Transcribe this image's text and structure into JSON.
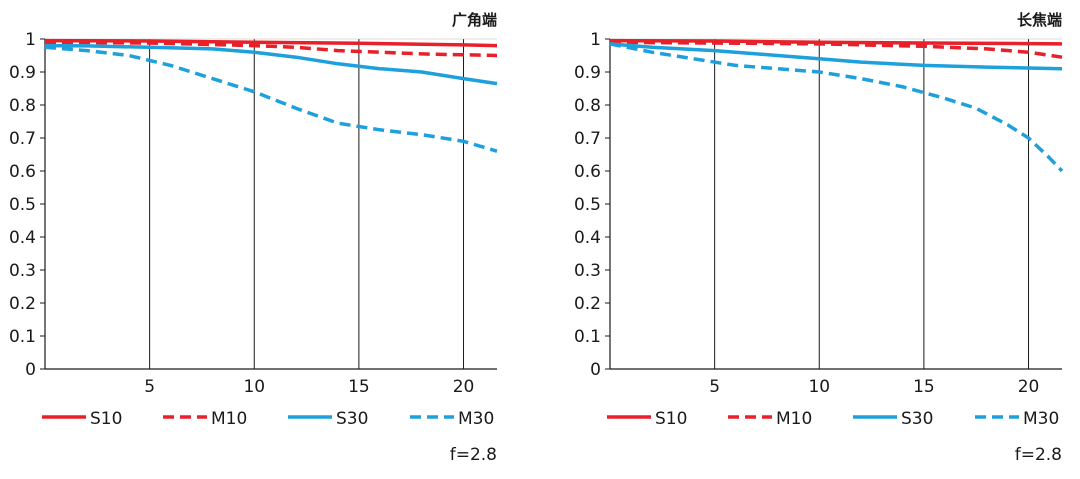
{
  "chart_data": [
    {
      "type": "line",
      "title": "广角端",
      "xlabel": "",
      "ylabel": "",
      "xlim": [
        0,
        21.6
      ],
      "ylim": [
        0,
        1
      ],
      "xticks": [
        5,
        10,
        15,
        20
      ],
      "xtick_labels": [
        "5",
        "10",
        "15",
        "20"
      ],
      "yticks": [
        0,
        0.1,
        0.2,
        0.3,
        0.4,
        0.5,
        0.6,
        0.7,
        0.8,
        0.9,
        1
      ],
      "ytick_labels": [
        "0",
        "0.1",
        "0.2",
        "0.3",
        "0.4",
        "0.5",
        "0.6",
        "0.7",
        "0.8",
        "0.9",
        "1"
      ],
      "grid": "vertical",
      "legend_position": "bottom",
      "annotation": "f=2.8",
      "series": [
        {
          "name": "S10",
          "color": "#e8202a",
          "style": "solid",
          "x": [
            0,
            5,
            10,
            15,
            20,
            21.6
          ],
          "y": [
            0.995,
            0.994,
            0.99,
            0.987,
            0.982,
            0.98
          ]
        },
        {
          "name": "M10",
          "color": "#e8202a",
          "style": "dashed",
          "x": [
            0,
            5,
            10,
            12,
            14,
            16,
            18,
            20,
            21.6
          ],
          "y": [
            0.99,
            0.988,
            0.98,
            0.975,
            0.965,
            0.96,
            0.955,
            0.952,
            0.95
          ]
        },
        {
          "name": "S30",
          "color": "#1ea0dc",
          "style": "solid",
          "x": [
            0,
            2,
            5,
            8,
            10,
            12,
            14,
            16,
            18,
            20,
            21.6
          ],
          "y": [
            0.98,
            0.979,
            0.975,
            0.97,
            0.96,
            0.945,
            0.925,
            0.91,
            0.9,
            0.88,
            0.865
          ]
        },
        {
          "name": "M30",
          "color": "#1ea0dc",
          "style": "dashed",
          "x": [
            0,
            2,
            4,
            6,
            8,
            10,
            12,
            14,
            16,
            18,
            20,
            21.6
          ],
          "y": [
            0.975,
            0.965,
            0.95,
            0.92,
            0.88,
            0.84,
            0.79,
            0.745,
            0.725,
            0.71,
            0.69,
            0.66
          ]
        }
      ]
    },
    {
      "type": "line",
      "title": "长焦端",
      "xlabel": "",
      "ylabel": "",
      "xlim": [
        0,
        21.6
      ],
      "ylim": [
        0,
        1
      ],
      "xticks": [
        5,
        10,
        15,
        20
      ],
      "xtick_labels": [
        "5",
        "10",
        "15",
        "20"
      ],
      "yticks": [
        0,
        0.1,
        0.2,
        0.3,
        0.4,
        0.5,
        0.6,
        0.7,
        0.8,
        0.9,
        1
      ],
      "ytick_labels": [
        "0",
        "0.1",
        "0.2",
        "0.3",
        "0.4",
        "0.5",
        "0.6",
        "0.7",
        "0.8",
        "0.9",
        "1"
      ],
      "grid": "vertical",
      "legend_position": "bottom",
      "annotation": "f=2.8",
      "series": [
        {
          "name": "S10",
          "color": "#e8202a",
          "style": "solid",
          "x": [
            0,
            5,
            10,
            15,
            20,
            21.6
          ],
          "y": [
            0.995,
            0.994,
            0.99,
            0.988,
            0.986,
            0.985
          ]
        },
        {
          "name": "M10",
          "color": "#e8202a",
          "style": "dashed",
          "x": [
            0,
            5,
            10,
            15,
            18,
            20,
            21.6
          ],
          "y": [
            0.99,
            0.988,
            0.985,
            0.978,
            0.97,
            0.96,
            0.945
          ]
        },
        {
          "name": "S30",
          "color": "#1ea0dc",
          "style": "solid",
          "x": [
            0,
            2,
            5,
            8,
            10,
            12,
            15,
            18,
            21.6
          ],
          "y": [
            0.985,
            0.975,
            0.965,
            0.95,
            0.94,
            0.93,
            0.92,
            0.915,
            0.91
          ]
        },
        {
          "name": "M30",
          "color": "#1ea0dc",
          "style": "dashed",
          "x": [
            0,
            2,
            4,
            6,
            8,
            10,
            12,
            14,
            16,
            17.5,
            19,
            20,
            21,
            21.6
          ],
          "y": [
            0.985,
            0.96,
            0.94,
            0.92,
            0.91,
            0.9,
            0.88,
            0.855,
            0.82,
            0.79,
            0.74,
            0.7,
            0.64,
            0.6
          ]
        }
      ]
    }
  ]
}
